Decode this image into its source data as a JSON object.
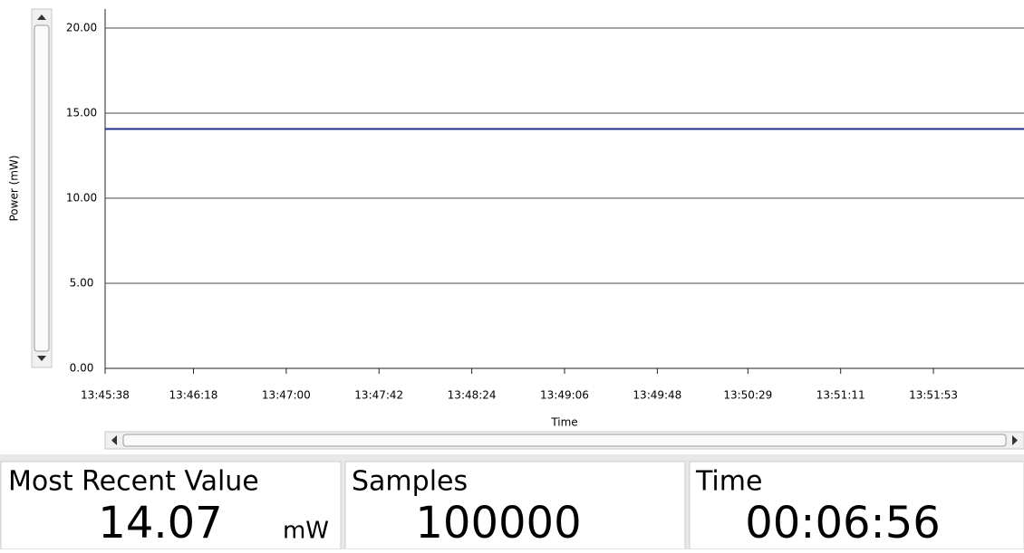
{
  "chart_data": {
    "type": "line",
    "y_label": "Power (mW)",
    "x_label": "Time",
    "x": [
      "13:45:38",
      "13:52:34"
    ],
    "series": [
      {
        "color": "#1c2f8a",
        "values": [
          14.07,
          14.07
        ]
      }
    ],
    "xlim": [
      "13:45:38",
      "13:52:34"
    ],
    "xticks": [
      "13:45:38",
      "13:46:18",
      "13:47:00",
      "13:47:42",
      "13:48:24",
      "13:49:06",
      "13:49:48",
      "13:50:29",
      "13:51:11",
      "13:51:53"
    ],
    "ylim": [
      0,
      20
    ],
    "yticks": [
      {
        "value": 0,
        "label": "0.00"
      },
      {
        "value": 5,
        "label": "5.00"
      },
      {
        "value": 10,
        "label": "10.00"
      },
      {
        "value": 15,
        "label": "15.00"
      },
      {
        "value": 20,
        "label": "20.00"
      }
    ],
    "grid": true
  },
  "panels": [
    {
      "title": "Most Recent Value",
      "value": 14.07,
      "unit": "mW"
    },
    {
      "title": "Samples",
      "value": 100000
    },
    {
      "title": "Time",
      "value": "00:06:56"
    }
  ]
}
